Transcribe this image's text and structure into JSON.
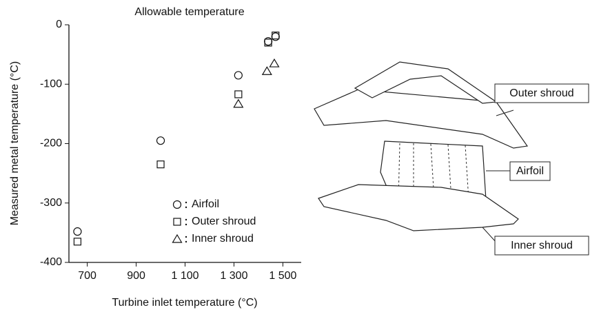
{
  "chart_data": {
    "type": "scatter",
    "annotation": "Allowable temperature",
    "xlabel": "Turbine inlet temperature  (°C)",
    "ylabel": "Measured metal temperature  (°C)",
    "xlim": [
      625,
      1575
    ],
    "ylim": [
      -400,
      0
    ],
    "xticks": [
      700,
      900,
      {
        "value": 1100,
        "label": "1 100"
      },
      {
        "value": 1300,
        "label": "1 300"
      },
      {
        "value": 1500,
        "label": "1 500"
      }
    ],
    "yticks": [
      0,
      -100,
      -200,
      -300,
      -400
    ],
    "series": [
      {
        "name": "Airfoil",
        "marker": "circle",
        "color": "#111111",
        "x": [
          660,
          1000,
          1318,
          1440,
          1470
        ],
        "values": [
          -348,
          -195,
          -85,
          -28,
          -20
        ]
      },
      {
        "name": "Outer shroud",
        "marker": "square",
        "color": "#111111",
        "x": [
          660,
          1000,
          1318,
          1440,
          1470
        ],
        "values": [
          -365,
          -235,
          -117,
          -30,
          -18
        ]
      },
      {
        "name": "Inner shroud",
        "marker": "triangle",
        "color": "#111111",
        "x": [
          1318,
          1435,
          1465
        ],
        "values": [
          -133,
          -78,
          -65
        ]
      }
    ]
  },
  "diagram": {
    "labels": [
      "Outer shroud",
      "Airfoil",
      "Inner shroud"
    ]
  }
}
